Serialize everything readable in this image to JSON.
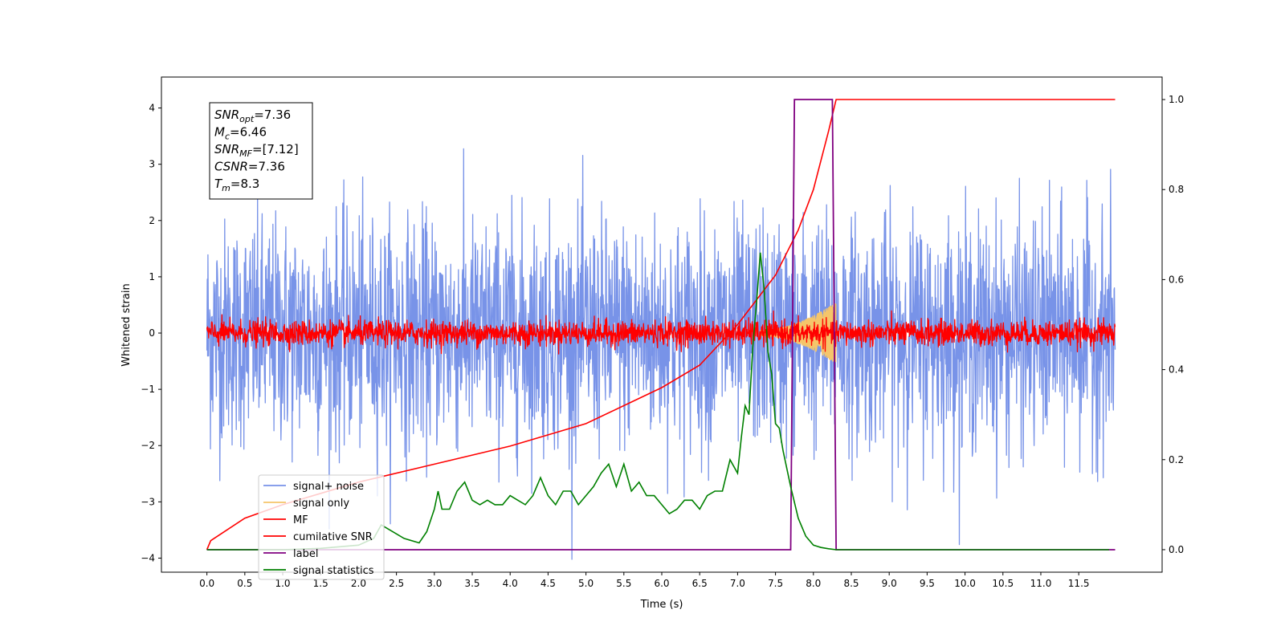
{
  "chart_data": {
    "type": "line",
    "xlabel": "Time (s)",
    "ylabel": "Whitened strain",
    "ylabel_right": "",
    "xlim": [
      -0.6,
      12.6
    ],
    "ylim": [
      -4.25,
      4.55
    ],
    "ylim_right": [
      -0.05,
      1.05
    ],
    "x_ticks": [
      "0.0",
      "0.5",
      "1.0",
      "1.5",
      "2.0",
      "2.5",
      "3.0",
      "3.5",
      "4.0",
      "4.5",
      "5.0",
      "5.5",
      "6.0",
      "6.5",
      "7.0",
      "7.5",
      "8.0",
      "8.5",
      "9.0",
      "9.5",
      "10.0",
      "10.5",
      "11.0",
      "11.5"
    ],
    "y_ticks": [
      "4",
      "3",
      "2",
      "1",
      "0",
      "−1",
      "−2",
      "−3",
      "−4"
    ],
    "y_ticks_right": [
      "1.0",
      "0.8",
      "0.6",
      "0.4",
      "0.2",
      "0.0"
    ],
    "grid": false,
    "legend_position": "lower-left",
    "info_box": {
      "lines": [
        {
          "sym": "SNR",
          "sub": "opt",
          "val": "=7.36"
        },
        {
          "sym": "M",
          "sub": "c",
          "val": "=6.46"
        },
        {
          "sym": "SNR",
          "sub": "MF",
          "val": "=[7.12]"
        },
        {
          "sym": "CSNR",
          "sub": "",
          "val": "=7.36"
        },
        {
          "sym": "T",
          "sub": "m",
          "val": "=8.3"
        }
      ]
    },
    "series": [
      {
        "name": "signal+ noise",
        "axis": "left",
        "color": "#7893e8",
        "style": "noise",
        "x_range": [
          0,
          11.98
        ],
        "amplitude": 2.6,
        "mean": 0.0
      },
      {
        "name": "signal only",
        "axis": "left",
        "color": "#f5c56a",
        "style": "chirp",
        "x_range": [
          7.3,
          8.3
        ],
        "amplitude": 0.5
      },
      {
        "name": "MF",
        "axis": "left",
        "color": "#ff0000",
        "style": "noise",
        "x_range": [
          0,
          11.98
        ],
        "amplitude": 0.3,
        "mean": 0.0
      },
      {
        "name": "cumilative SNR",
        "axis": "right",
        "color": "#ff0000",
        "x": [
          0.0,
          0.05,
          0.5,
          1.0,
          2.0,
          3.0,
          4.0,
          5.0,
          6.0,
          6.5,
          7.0,
          7.5,
          7.8,
          8.0,
          8.2,
          8.3,
          11.98
        ],
        "y": [
          0.0,
          0.02,
          0.07,
          0.1,
          0.15,
          0.19,
          0.23,
          0.28,
          0.36,
          0.41,
          0.5,
          0.61,
          0.71,
          0.8,
          0.93,
          1.0,
          1.0
        ]
      },
      {
        "name": "label",
        "axis": "right",
        "color": "#800080",
        "x": [
          0.0,
          7.7,
          7.75,
          8.25,
          8.3,
          11.98
        ],
        "y": [
          0.0,
          0.0,
          1.0,
          1.0,
          0.0,
          0.0
        ]
      },
      {
        "name": "signal statistics",
        "axis": "right",
        "color": "#008000",
        "x": [
          0.0,
          1.0,
          1.5,
          2.0,
          2.2,
          2.3,
          2.4,
          2.6,
          2.8,
          2.9,
          3.0,
          3.05,
          3.1,
          3.2,
          3.3,
          3.4,
          3.5,
          3.6,
          3.7,
          3.8,
          3.9,
          4.0,
          4.1,
          4.2,
          4.3,
          4.4,
          4.5,
          4.6,
          4.7,
          4.8,
          4.9,
          5.0,
          5.1,
          5.2,
          5.3,
          5.4,
          5.5,
          5.6,
          5.7,
          5.8,
          5.9,
          6.0,
          6.1,
          6.2,
          6.3,
          6.4,
          6.5,
          6.6,
          6.7,
          6.8,
          6.9,
          7.0,
          7.05,
          7.1,
          7.15,
          7.2,
          7.25,
          7.3,
          7.35,
          7.4,
          7.45,
          7.5,
          7.55,
          7.6,
          7.7,
          7.8,
          7.9,
          8.0,
          8.1,
          8.2,
          8.3,
          9.0,
          10.0,
          11.0,
          11.9
        ],
        "y": [
          0.0,
          0.0,
          0.003,
          0.01,
          0.025,
          0.055,
          0.045,
          0.025,
          0.015,
          0.04,
          0.09,
          0.13,
          0.09,
          0.09,
          0.13,
          0.15,
          0.11,
          0.1,
          0.11,
          0.1,
          0.1,
          0.12,
          0.11,
          0.1,
          0.12,
          0.16,
          0.12,
          0.1,
          0.13,
          0.13,
          0.1,
          0.12,
          0.14,
          0.17,
          0.19,
          0.14,
          0.19,
          0.13,
          0.15,
          0.12,
          0.12,
          0.1,
          0.08,
          0.09,
          0.11,
          0.11,
          0.09,
          0.12,
          0.13,
          0.13,
          0.2,
          0.17,
          0.25,
          0.32,
          0.3,
          0.45,
          0.55,
          0.66,
          0.58,
          0.44,
          0.39,
          0.28,
          0.27,
          0.22,
          0.14,
          0.07,
          0.03,
          0.01,
          0.005,
          0.002,
          0.0,
          0.0,
          0.0,
          0.0,
          0.0
        ]
      }
    ]
  }
}
